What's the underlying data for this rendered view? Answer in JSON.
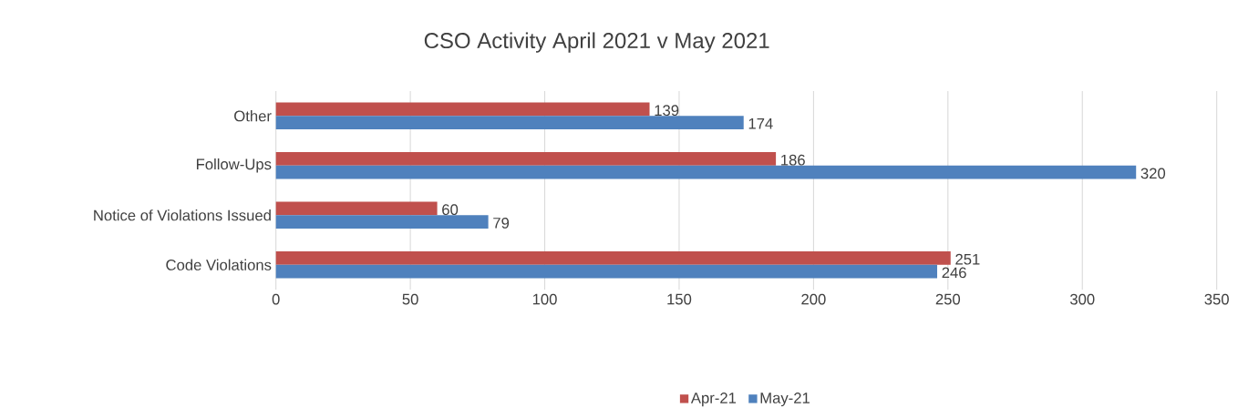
{
  "chart_data": {
    "type": "bar",
    "orientation": "horizontal",
    "title": "CSO Activity April 2021 v May 2021",
    "categories": [
      "Other",
      "Follow-Ups",
      "Notice of Violations Issued",
      "Code Violations"
    ],
    "series": [
      {
        "name": "Apr-21",
        "color": "#c0504d",
        "values": [
          139,
          186,
          60,
          251
        ]
      },
      {
        "name": "May-21",
        "color": "#4f81bd",
        "values": [
          174,
          320,
          79,
          246
        ]
      }
    ],
    "xlim": [
      0,
      350
    ],
    "xticks": [
      0,
      50,
      100,
      150,
      200,
      250,
      300,
      350
    ],
    "grid": "x",
    "legend": "bottom",
    "data_labels": true
  }
}
